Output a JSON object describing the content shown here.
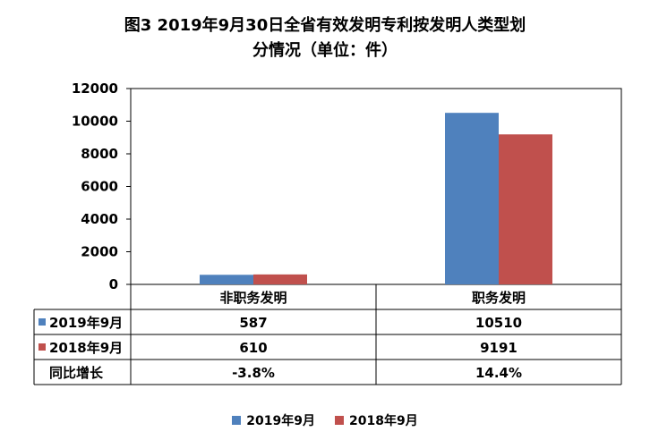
{
  "chart_data": {
    "type": "bar",
    "title_line1": "图3  2019年9月30日全省有效发明专利按发明人类型划",
    "title_line2": "分情况（单位：件）",
    "categories": [
      "非职务发明",
      "职务发明"
    ],
    "series": [
      {
        "name": "2019年9月",
        "values": [
          587,
          10510
        ],
        "color": "#4f81bd"
      },
      {
        "name": "2018年9月",
        "values": [
          610,
          9191
        ],
        "color": "#c0504d"
      }
    ],
    "ylim": [
      0,
      12000
    ],
    "yticks": [
      0,
      2000,
      4000,
      6000,
      8000,
      10000,
      12000
    ],
    "table": {
      "row_labels": [
        "2019年9月",
        "2018年9月",
        "同比增长"
      ],
      "rows": [
        [
          "587",
          "10510"
        ],
        [
          "610",
          "9191"
        ],
        [
          "-3.8%",
          "14.4%"
        ]
      ]
    },
    "legend_position": "bottom"
  }
}
